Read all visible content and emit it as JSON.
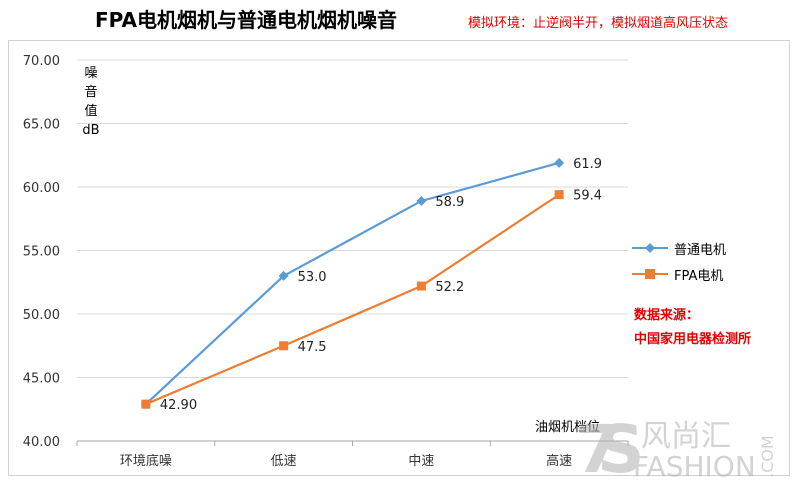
{
  "title": "FPA电机烟机与普通电机烟机噪音",
  "subtitle": "模拟环境：止逆阀半开，模拟烟道高风压状态",
  "source": {
    "line1": "数据来源：",
    "line2": "中国家用电器检测所"
  },
  "watermark": "风尚汇 FASHION.COM",
  "chart_data": {
    "type": "line",
    "title": "FPA电机烟机与普通电机烟机噪音",
    "ylabel": "噪音值dB",
    "xlabel": "油烟机档位",
    "categories": [
      "环境底噪",
      "低速",
      "中速",
      "高速"
    ],
    "ylim": [
      40,
      70
    ],
    "yticks": [
      "40.00",
      "45.00",
      "50.00",
      "55.00",
      "60.00",
      "65.00",
      "70.00"
    ],
    "grid": true,
    "legend_position": "right",
    "series": [
      {
        "name": "普通电机",
        "color": "#5b9bd5",
        "marker": "diamond",
        "values": [
          42.9,
          53.0,
          58.9,
          61.9
        ],
        "labels": [
          "",
          "53.0",
          "58.9",
          "61.9"
        ]
      },
      {
        "name": "FPA电机",
        "color": "#ed7d31",
        "marker": "square",
        "values": [
          42.9,
          47.5,
          52.2,
          59.4
        ],
        "labels": [
          "42.90",
          "47.5",
          "52.2",
          "59.4"
        ]
      }
    ]
  }
}
